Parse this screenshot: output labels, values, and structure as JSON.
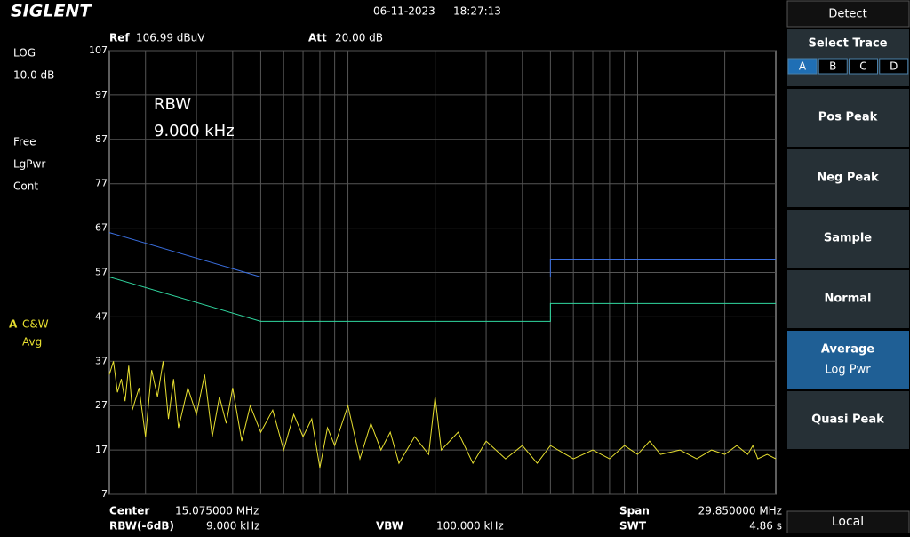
{
  "header": {
    "brand": "SIGLENT",
    "date": "06-11-2023",
    "time": "18:27:13"
  },
  "status": {
    "ref_label": "Ref",
    "ref": "106.99 dBuV",
    "att_label": "Att",
    "att": "20.00 dB"
  },
  "left": {
    "scale": "LOG",
    "div": "10.0 dB",
    "items": [
      "Free",
      "LgPwr",
      "Cont"
    ],
    "trace_letter": "A",
    "trace_mode": "C&W",
    "trace_detect": "Avg"
  },
  "plot": {
    "ylim": [
      7,
      107
    ],
    "yticks": [
      107,
      97,
      87,
      77,
      67,
      57,
      47,
      37,
      27,
      17,
      7
    ],
    "xlim": [
      0.15,
      30
    ],
    "x_log": true,
    "grid": true,
    "annotation": [
      "RBW",
      "9.000 kHz"
    ],
    "limits": [
      {
        "color": "#3a6fe0",
        "x": [
          0.15,
          0.5,
          5,
          5,
          30
        ],
        "values": [
          66,
          56,
          56,
          60,
          60
        ]
      },
      {
        "color": "#30d8a0",
        "x": [
          0.15,
          0.5,
          5,
          5,
          30
        ],
        "values": [
          56,
          46,
          46,
          50,
          50
        ]
      }
    ],
    "trace": {
      "color": "#e8e030",
      "x": [
        0.15,
        0.155,
        0.16,
        0.165,
        0.17,
        0.175,
        0.18,
        0.19,
        0.2,
        0.21,
        0.22,
        0.23,
        0.24,
        0.25,
        0.26,
        0.28,
        0.3,
        0.32,
        0.34,
        0.36,
        0.38,
        0.4,
        0.43,
        0.46,
        0.5,
        0.55,
        0.6,
        0.65,
        0.7,
        0.75,
        0.8,
        0.85,
        0.9,
        1.0,
        1.1,
        1.2,
        1.3,
        1.4,
        1.5,
        1.7,
        1.9,
        2.0,
        2.1,
        2.4,
        2.7,
        3,
        3.5,
        4,
        4.5,
        5,
        6,
        7,
        8,
        9,
        10,
        11,
        12,
        14,
        16,
        18,
        20,
        22,
        24,
        25,
        26,
        28,
        30
      ],
      "values": [
        34,
        37,
        30,
        33,
        28,
        36,
        26,
        31,
        20,
        35,
        29,
        37,
        24,
        33,
        22,
        31,
        25,
        34,
        20,
        29,
        23,
        31,
        19,
        27,
        21,
        26,
        17,
        25,
        20,
        24,
        13,
        22,
        18,
        27,
        15,
        23,
        17,
        21,
        14,
        20,
        16,
        29,
        17,
        21,
        14,
        19,
        15,
        18,
        14,
        18,
        15,
        17,
        15,
        18,
        16,
        19,
        16,
        17,
        15,
        17,
        16,
        18,
        16,
        18,
        15,
        16,
        15
      ]
    }
  },
  "footer": {
    "center_label": "Center",
    "center": "15.075000 MHz",
    "span_label": "Span",
    "span": "29.850000 MHz",
    "rbw_label": "RBW(-6dB)",
    "rbw": "9.000 kHz",
    "vbw_label": "VBW",
    "vbw": "100.000 kHz",
    "swt_label": "SWT",
    "swt": "4.86 s"
  },
  "menu": {
    "title": "Detect",
    "select_trace": "Select Trace",
    "traces": [
      "A",
      "B",
      "C",
      "D"
    ],
    "active_trace": 0,
    "buttons": [
      {
        "label": "Pos Peak"
      },
      {
        "label": "Neg Peak"
      },
      {
        "label": "Sample"
      },
      {
        "label": "Normal"
      },
      {
        "label": "Average",
        "sub": "Log Pwr",
        "active": true
      },
      {
        "label": "Quasi Peak"
      }
    ],
    "local": "Local"
  }
}
